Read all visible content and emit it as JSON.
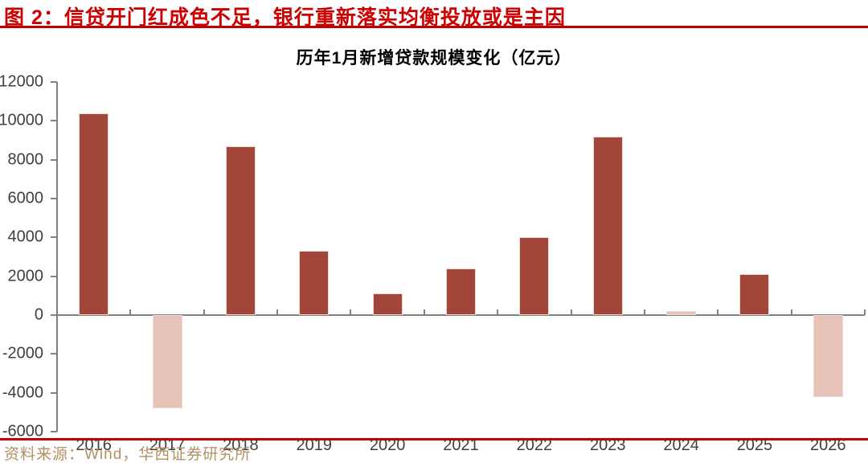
{
  "header": {
    "title": "图 2：信贷开门红成色不足，银行重新落实均衡投放或是主因",
    "title_color": "#CC0000",
    "rule_color": "#C00000"
  },
  "chart_data": {
    "type": "bar",
    "title": "历年1月新增贷款规模变化（亿元）",
    "categories": [
      "2016",
      "2017",
      "2018",
      "2019",
      "2020",
      "2021",
      "2022",
      "2023",
      "2024",
      "2025",
      "2026"
    ],
    "values": [
      10400,
      -4800,
      8700,
      3300,
      1100,
      2400,
      4000,
      9200,
      200,
      2100,
      -4200
    ],
    "bar_tones": [
      "dark",
      "light",
      "dark",
      "dark",
      "dark",
      "dark",
      "dark",
      "dark",
      "light",
      "dark",
      "light"
    ],
    "xlabel": "",
    "ylabel": "",
    "ylim": [
      -6000,
      12000
    ],
    "ytick_step": 2000,
    "grid": false,
    "legend": false,
    "colors": {
      "dark_bar": "#A2463A",
      "light_bar": "#E7C2B8",
      "axis": "#808080",
      "tick_label": "#3F3F3F"
    }
  },
  "footer": {
    "source": "资料来源：Wind，华西证券研究所",
    "text_color": "#B29264",
    "rule_color": "#C00000"
  }
}
